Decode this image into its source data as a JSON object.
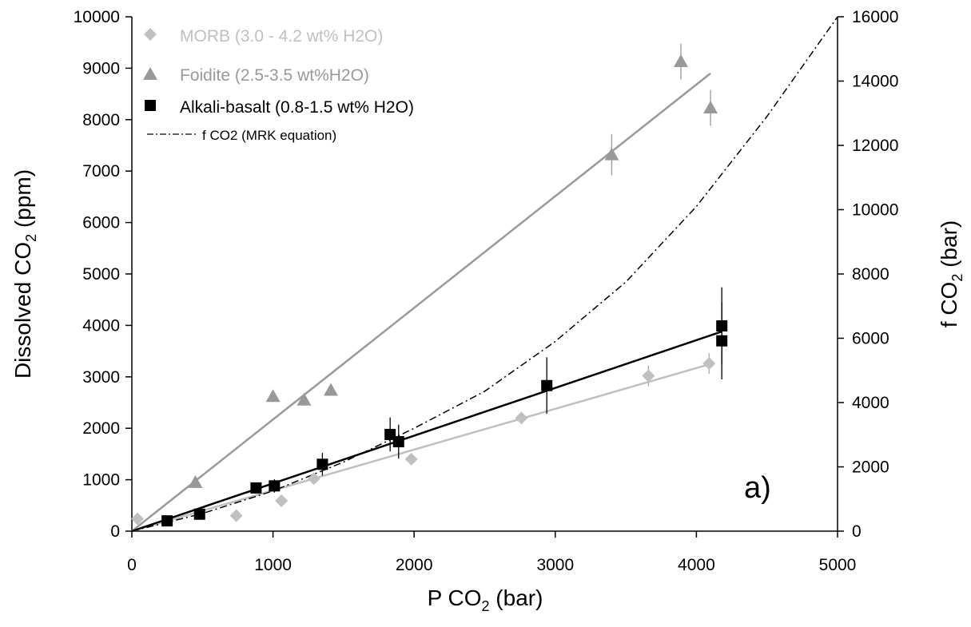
{
  "chart_data": {
    "type": "scatter",
    "panel_label": "a)",
    "xlabel": {
      "main": "P CO",
      "sub": "2",
      "tail": " (bar)"
    },
    "ylabel": {
      "main": "Dissolved CO",
      "sub": "2",
      "tail": " (ppm)"
    },
    "y2label": {
      "main": "f CO",
      "sub": "2",
      "tail": " (bar)"
    },
    "xlim": [
      0,
      5000
    ],
    "ylim": [
      0,
      10000
    ],
    "y2lim": [
      0,
      16000
    ],
    "xticks": [
      0,
      1000,
      2000,
      3000,
      4000,
      5000
    ],
    "yticks": [
      0,
      1000,
      2000,
      3000,
      4000,
      5000,
      6000,
      7000,
      8000,
      9000,
      10000
    ],
    "y2ticks": [
      0,
      2000,
      4000,
      6000,
      8000,
      10000,
      12000,
      14000,
      16000
    ],
    "grid": false,
    "legend_position": "top-left",
    "series": [
      {
        "name": "MORB (3.0 - 4.2 wt% H2O)",
        "color": "#c0c0c0",
        "marker": "diamond",
        "points": [
          {
            "x": 40,
            "y": 240,
            "err": 0
          },
          {
            "x": 740,
            "y": 300,
            "err": 0
          },
          {
            "x": 1060,
            "y": 590,
            "err": 0
          },
          {
            "x": 1290,
            "y": 1020,
            "err": 0
          },
          {
            "x": 1980,
            "y": 1400,
            "err": 0
          },
          {
            "x": 2760,
            "y": 2200,
            "err": 0
          },
          {
            "x": 3660,
            "y": 3020,
            "err": 200
          },
          {
            "x": 4090,
            "y": 3260,
            "err": 200
          }
        ],
        "fit": {
          "x": [
            0,
            4100
          ],
          "y": [
            0,
            3250
          ]
        }
      },
      {
        "name": "Foidite (2.5-3.5 wt%H2O)",
        "color": "#999999",
        "marker": "triangle",
        "points": [
          {
            "x": 450,
            "y": 950,
            "err": 0
          },
          {
            "x": 1000,
            "y": 2620,
            "err": 0
          },
          {
            "x": 1220,
            "y": 2550,
            "err": 0
          },
          {
            "x": 1410,
            "y": 2740,
            "err": 0
          },
          {
            "x": 3400,
            "y": 7320,
            "err": 400
          },
          {
            "x": 3890,
            "y": 9130,
            "err": 350
          },
          {
            "x": 4100,
            "y": 8230,
            "err": 350
          }
        ],
        "fit": {
          "x": [
            0,
            4100
          ],
          "y": [
            0,
            8900
          ]
        }
      },
      {
        "name": "Alkali-basalt (0.8-1.5 wt% H2O)",
        "color": "#000000",
        "marker": "square",
        "points": [
          {
            "x": 250,
            "y": 200,
            "err": 0
          },
          {
            "x": 480,
            "y": 330,
            "err": 0
          },
          {
            "x": 880,
            "y": 840,
            "err": 0
          },
          {
            "x": 1010,
            "y": 880,
            "err": 130
          },
          {
            "x": 1350,
            "y": 1300,
            "err": 220
          },
          {
            "x": 1830,
            "y": 1880,
            "err": 330
          },
          {
            "x": 1890,
            "y": 1740,
            "err": 330
          },
          {
            "x": 2940,
            "y": 2830,
            "err": 550
          },
          {
            "x": 4180,
            "y": 3990,
            "err": 750
          },
          {
            "x": 4180,
            "y": 3700,
            "err": 750
          }
        ],
        "fit": {
          "x": [
            0,
            4180
          ],
          "y": [
            0,
            3880
          ]
        }
      },
      {
        "name": "f CO2 (MRK equation)",
        "color": "#000000",
        "style": "dash-dot",
        "axis": "right",
        "x": [
          0,
          500,
          1000,
          1500,
          2000,
          2500,
          3000,
          3500,
          4000,
          4500,
          5000
        ],
        "y": [
          0,
          550,
          1250,
          2150,
          3200,
          4350,
          5900,
          7750,
          10100,
          12900,
          16000
        ]
      }
    ]
  }
}
